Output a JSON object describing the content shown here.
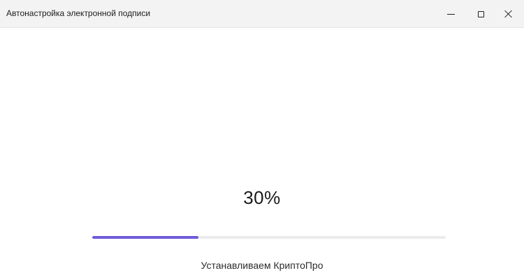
{
  "window": {
    "title": "Автонастройка электронной подписи",
    "controls": {
      "minimize_icon": "minimize-icon",
      "maximize_icon": "maximize-icon",
      "close_icon": "close-icon"
    }
  },
  "progress": {
    "percent_label": "30%",
    "value": 0.3,
    "fill_color": "#6f5bd9",
    "track_color": "#ececec",
    "status_text": "Устанавливаем КриптоПро"
  }
}
